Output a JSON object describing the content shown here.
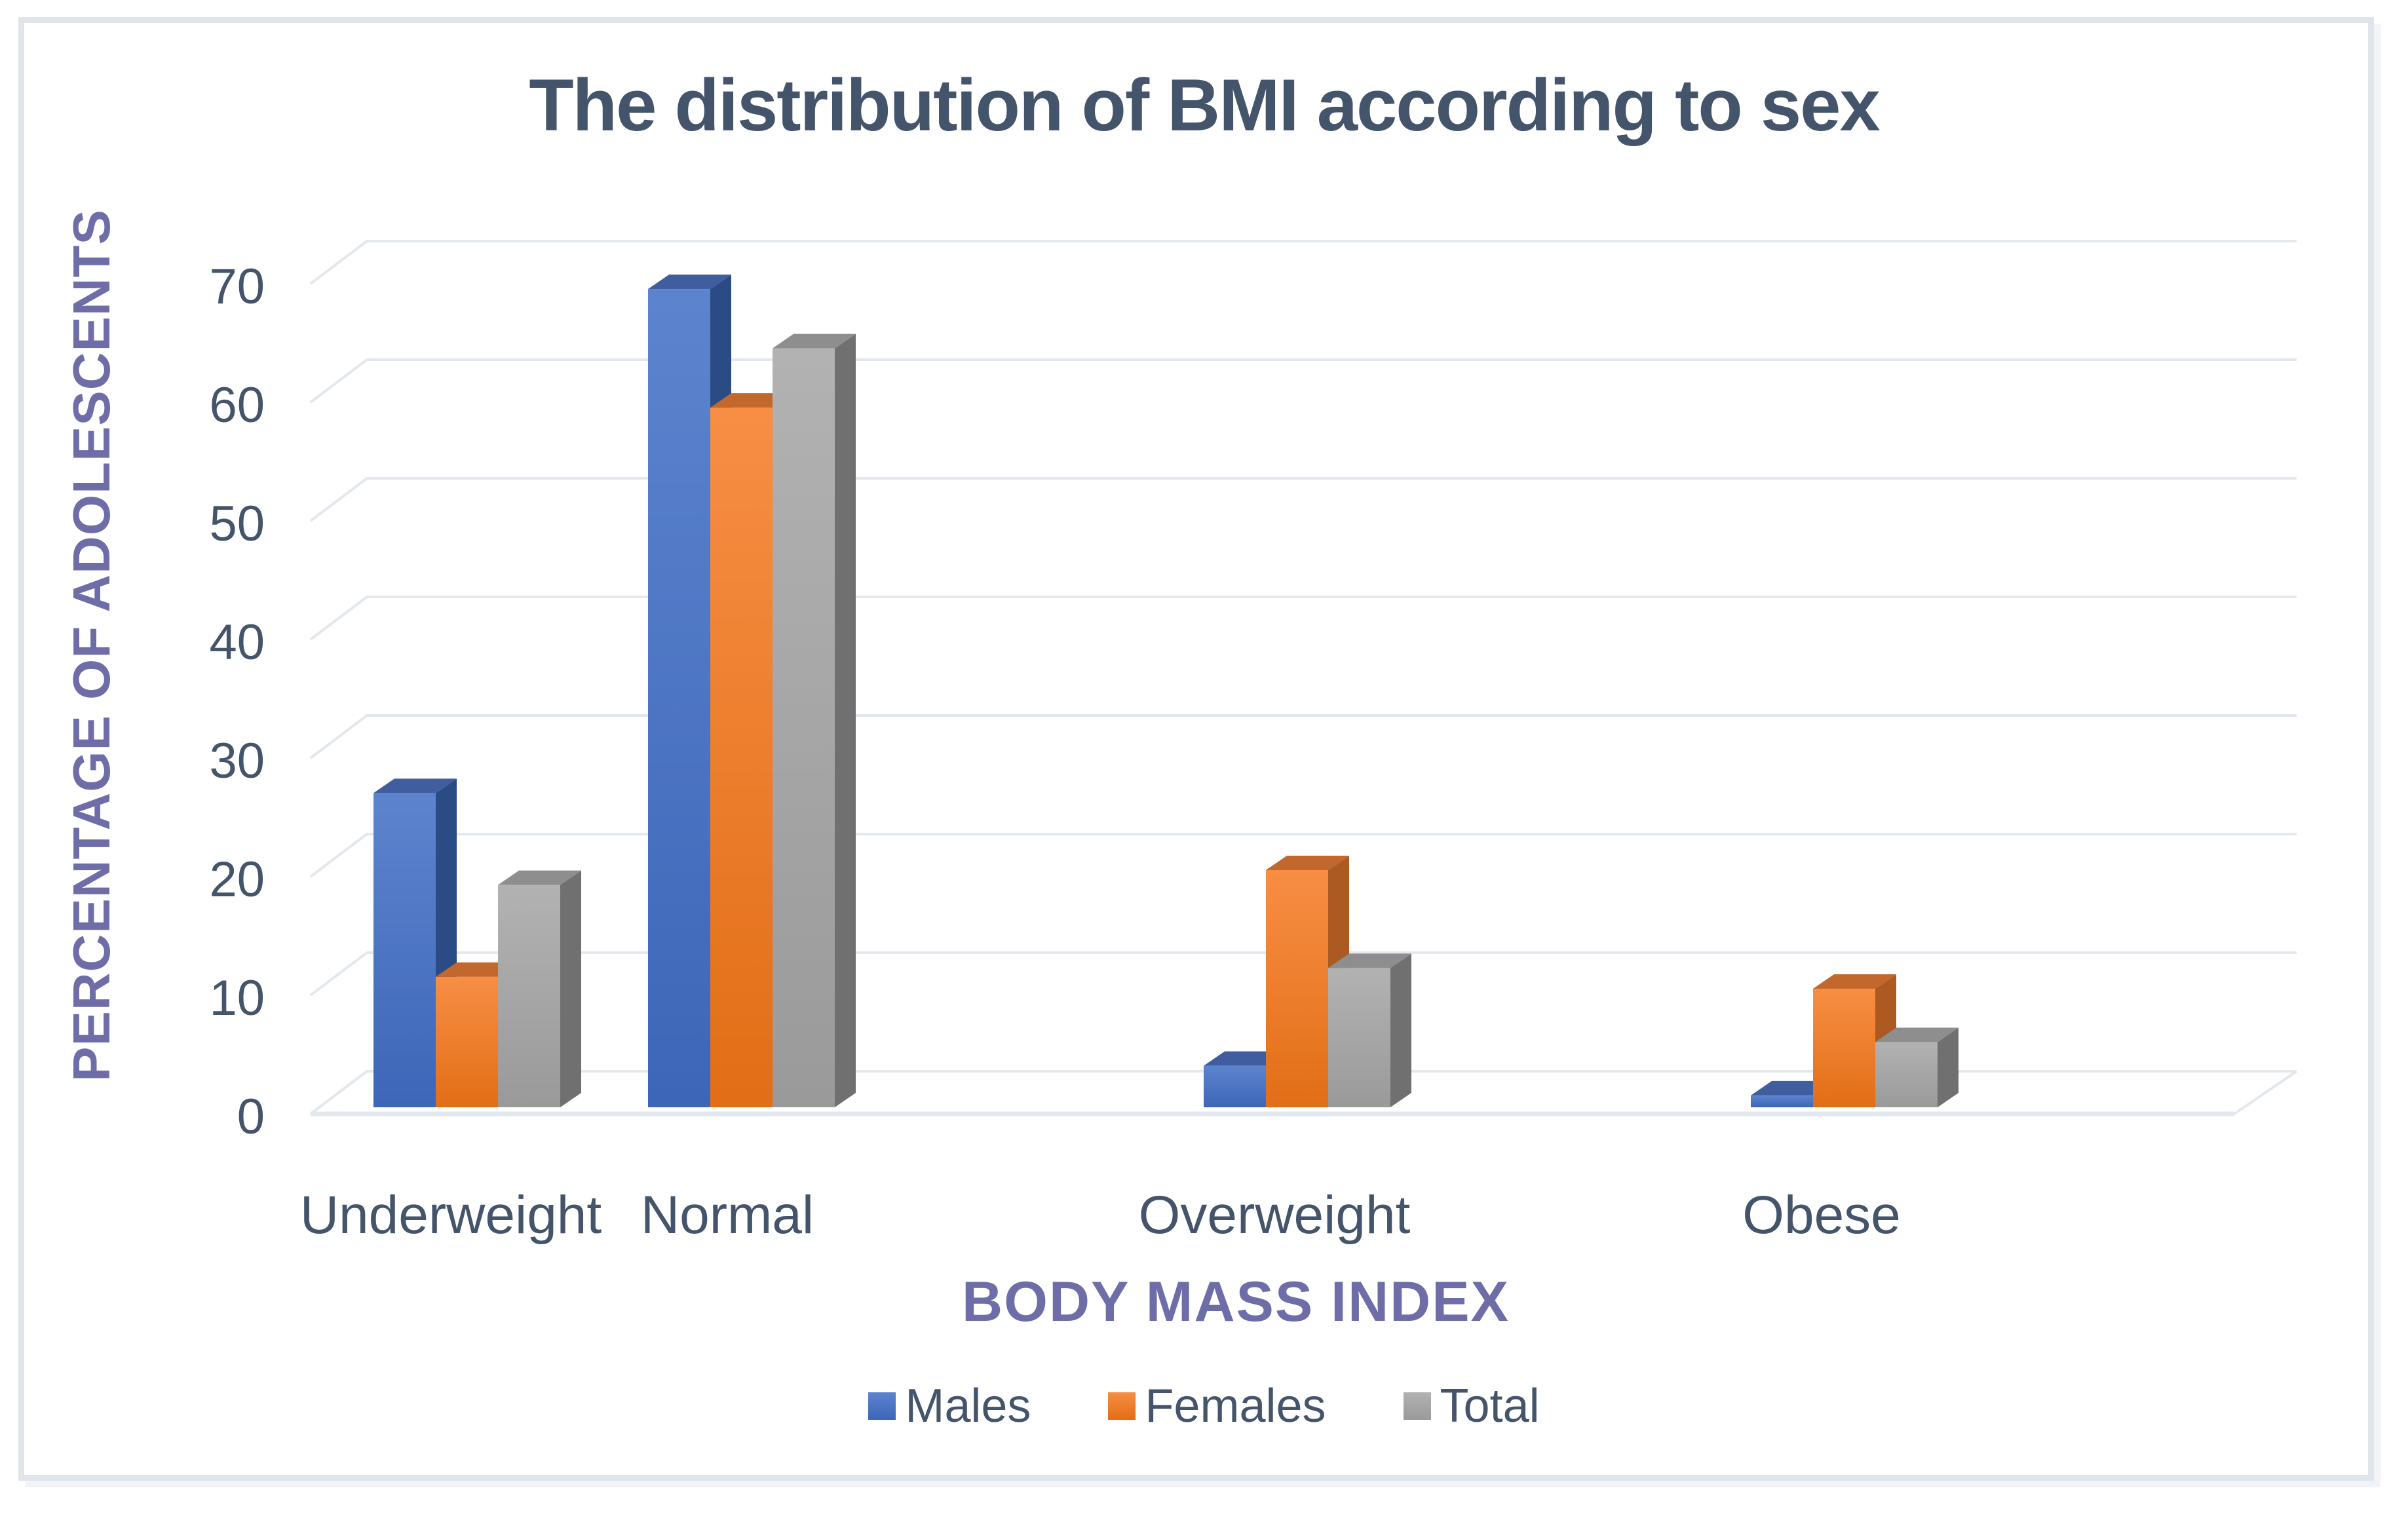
{
  "chart": {
    "title": "The distribution of BMI according to sex",
    "y_axis_title": "PERCENTAGE OF ADOLESCENTS",
    "x_axis_title": "BODY MASS INDEX",
    "colors": {
      "title_text": "#44546A",
      "axis_title_text": "#6F6DA8",
      "tick_text": "#44546A",
      "category_text": "#44546A",
      "legend_text": "#44546A",
      "gridline": "#E3E7EE",
      "frame_border": "#E0E5EC",
      "background": "#FFFFFF"
    }
  },
  "chart_data": {
    "type": "bar",
    "subtype": "3d_clustered_column",
    "title": "The distribution of BMI according to sex",
    "xlabel": "BODY MASS INDEX",
    "ylabel": "PERCENTAGE OF ADOLESCENTS",
    "categories": [
      "Underweight",
      "Normal",
      "Overweight",
      "Obese"
    ],
    "series": [
      {
        "name": "Males",
        "values": [
          26.5,
          69,
          3.5,
          1
        ],
        "color": "#4472C4",
        "gradient_top": "#5C84CE",
        "gradient_bottom": "#3D66B8",
        "top_face": "#405E9F",
        "side_face": "#2B4B84"
      },
      {
        "name": "Females",
        "values": [
          11,
          59,
          20,
          10
        ],
        "color": "#ED7D31",
        "gradient_top": "#F78E44",
        "gradient_bottom": "#E26E16",
        "top_face": "#C2682C",
        "side_face": "#AC5A22"
      },
      {
        "name": "Total",
        "values": [
          18.75,
          64,
          11.75,
          5.5
        ],
        "color": "#A5A5A5",
        "gradient_top": "#B2B2B2",
        "gradient_bottom": "#9A9A9A",
        "top_face": "#8E8E8E",
        "side_face": "#707070"
      }
    ],
    "yticks": [
      70,
      60,
      50,
      40,
      30,
      20,
      10,
      0
    ],
    "ylim": [
      0,
      70
    ],
    "grid": true,
    "legend_position": "bottom"
  }
}
